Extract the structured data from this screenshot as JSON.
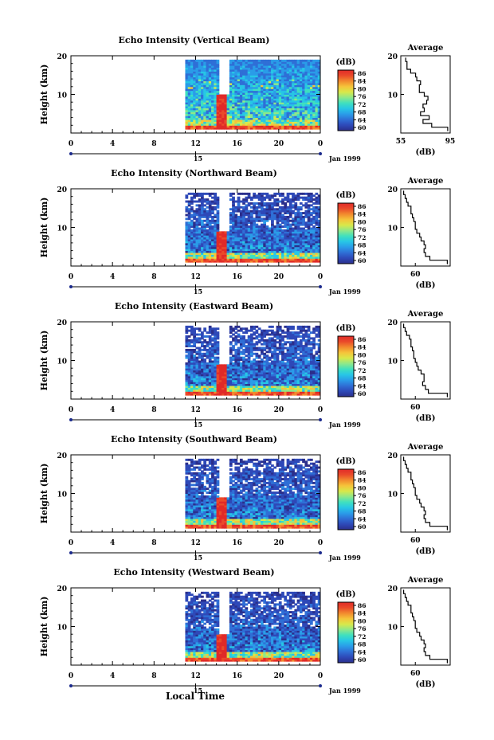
{
  "figure": {
    "xlabel_bottom": "Local Time",
    "colorbar_label": "(dB)",
    "colorbar_ticks": [
      "86",
      "84",
      "80",
      "76",
      "72",
      "68",
      "64",
      "60"
    ],
    "colormap": [
      "#2b2f8c",
      "#2e49b8",
      "#2f6fd6",
      "#2a9ce8",
      "#27c6e6",
      "#3fe0bf",
      "#8ee88a",
      "#d8e84a",
      "#f5c43a",
      "#f28a2e",
      "#ea4a2a",
      "#e02a28"
    ],
    "avg_title": "Average",
    "avg_xlabel": "(dB)",
    "date_label": "Jan 1999"
  },
  "chart_data": [
    {
      "type": "heatmap",
      "title": "Echo Intensity (Vertical Beam)",
      "ylabel": "Height (km)",
      "xlabel": "Local Time",
      "x_ticks": [
        "0",
        "4",
        "8",
        "12",
        "16",
        "20",
        "0"
      ],
      "x_range": [
        0,
        24
      ],
      "y_ticks": [
        "20",
        "10"
      ],
      "y_range": [
        0,
        20
      ],
      "day_marker": "15",
      "data_start_hour": 11,
      "gap_hours": [
        14,
        15
      ],
      "precip_band": [
        14,
        15,
        0,
        10
      ],
      "colorbar_range": [
        60,
        86
      ],
      "average_profile": {
        "x_ticks": [
          "55",
          "95"
        ],
        "x_range": [
          55,
          95
        ],
        "y_ticks": [
          "20",
          "10"
        ],
        "height_km": [
          1,
          2,
          3,
          4,
          5,
          6,
          7,
          8,
          9,
          10,
          11,
          12,
          13,
          14,
          15,
          16,
          17,
          18,
          19
        ],
        "echo_db": [
          93,
          80,
          73,
          78,
          71,
          74,
          73,
          76,
          77,
          74,
          70,
          70,
          71,
          68,
          67,
          63,
          60,
          60,
          59
        ]
      }
    },
    {
      "type": "heatmap",
      "title": "Echo Intensity (Northward Beam)",
      "ylabel": "Height (km)",
      "xlabel": "Local Time",
      "x_ticks": [
        "0",
        "4",
        "8",
        "12",
        "16",
        "20",
        "0"
      ],
      "x_range": [
        0,
        24
      ],
      "y_ticks": [
        "20",
        "10"
      ],
      "y_range": [
        0,
        20
      ],
      "day_marker": "15",
      "data_start_hour": 11,
      "gap_hours": [
        14,
        15
      ],
      "precip_band": [
        14,
        15,
        0,
        9
      ],
      "colorbar_range": [
        60,
        86
      ],
      "average_profile": {
        "x_ticks": [
          "60"
        ],
        "x_range": [
          50,
          84
        ],
        "y_ticks": [
          "20",
          "10"
        ],
        "height_km": [
          1,
          2,
          3,
          4,
          5,
          6,
          7,
          8,
          9,
          10,
          11,
          12,
          13,
          14,
          15,
          16,
          17,
          18,
          19
        ],
        "echo_db": [
          82,
          70,
          67,
          66,
          67,
          66,
          64,
          63,
          61,
          60,
          60,
          59,
          58,
          57,
          57,
          55,
          54,
          53,
          52
        ]
      }
    },
    {
      "type": "heatmap",
      "title": "Echo Intensity (Eastward Beam)",
      "ylabel": "Height (km)",
      "xlabel": "Local Time",
      "x_ticks": [
        "0",
        "4",
        "8",
        "12",
        "16",
        "20",
        "0"
      ],
      "x_range": [
        0,
        24
      ],
      "y_ticks": [
        "20",
        "10"
      ],
      "y_range": [
        0,
        20
      ],
      "day_marker": "15",
      "data_start_hour": 11,
      "gap_hours": [
        14,
        15
      ],
      "precip_band": [
        14,
        15,
        0,
        9
      ],
      "colorbar_range": [
        60,
        86
      ],
      "average_profile": {
        "x_ticks": [
          "60"
        ],
        "x_range": [
          50,
          84
        ],
        "y_ticks": [
          "20",
          "10"
        ],
        "height_km": [
          1,
          2,
          3,
          4,
          5,
          6,
          7,
          8,
          9,
          10,
          11,
          12,
          13,
          14,
          15,
          16,
          17,
          18,
          19
        ],
        "echo_db": [
          82,
          69,
          67,
          65,
          66,
          66,
          64,
          62,
          61,
          60,
          59,
          59,
          58,
          57,
          57,
          56,
          54,
          53,
          52
        ]
      }
    },
    {
      "type": "heatmap",
      "title": "Echo Intensity (Southward Beam)",
      "ylabel": "Height (km)",
      "xlabel": "Local Time",
      "x_ticks": [
        "0",
        "4",
        "8",
        "12",
        "16",
        "20",
        "0"
      ],
      "x_range": [
        0,
        24
      ],
      "y_ticks": [
        "20",
        "10"
      ],
      "y_range": [
        0,
        20
      ],
      "day_marker": "15",
      "data_start_hour": 11,
      "gap_hours": [
        14,
        15
      ],
      "precip_band": [
        14,
        15,
        0,
        9
      ],
      "colorbar_range": [
        60,
        86
      ],
      "average_profile": {
        "x_ticks": [
          "60"
        ],
        "x_range": [
          50,
          84
        ],
        "y_ticks": [
          "20",
          "10"
        ],
        "height_km": [
          1,
          2,
          3,
          4,
          5,
          6,
          7,
          8,
          9,
          10,
          11,
          12,
          13,
          14,
          15,
          16,
          17,
          18,
          19
        ],
        "echo_db": [
          82,
          70,
          67,
          66,
          67,
          66,
          64,
          63,
          61,
          60,
          60,
          59,
          58,
          57,
          57,
          55,
          54,
          53,
          52
        ]
      }
    },
    {
      "type": "heatmap",
      "title": "Echo Intensity (Westward Beam)",
      "ylabel": "Height (km)",
      "xlabel": "Local Time",
      "x_ticks": [
        "0",
        "4",
        "8",
        "12",
        "16",
        "20",
        "0"
      ],
      "x_range": [
        0,
        24
      ],
      "y_ticks": [
        "20",
        "10"
      ],
      "y_range": [
        0,
        20
      ],
      "day_marker": "15",
      "data_start_hour": 11,
      "gap_hours": [
        14,
        15
      ],
      "precip_band": [
        14,
        15,
        0,
        8
      ],
      "colorbar_range": [
        60,
        86
      ],
      "average_profile": {
        "x_ticks": [
          "60"
        ],
        "x_range": [
          50,
          84
        ],
        "y_ticks": [
          "20",
          "10"
        ],
        "height_km": [
          1,
          2,
          3,
          4,
          5,
          6,
          7,
          8,
          9,
          10,
          11,
          12,
          13,
          14,
          15,
          16,
          17,
          18,
          19
        ],
        "echo_db": [
          82,
          70,
          67,
          66,
          67,
          66,
          64,
          63,
          61,
          60,
          60,
          59,
          58,
          57,
          57,
          55,
          54,
          53,
          52
        ]
      }
    }
  ]
}
